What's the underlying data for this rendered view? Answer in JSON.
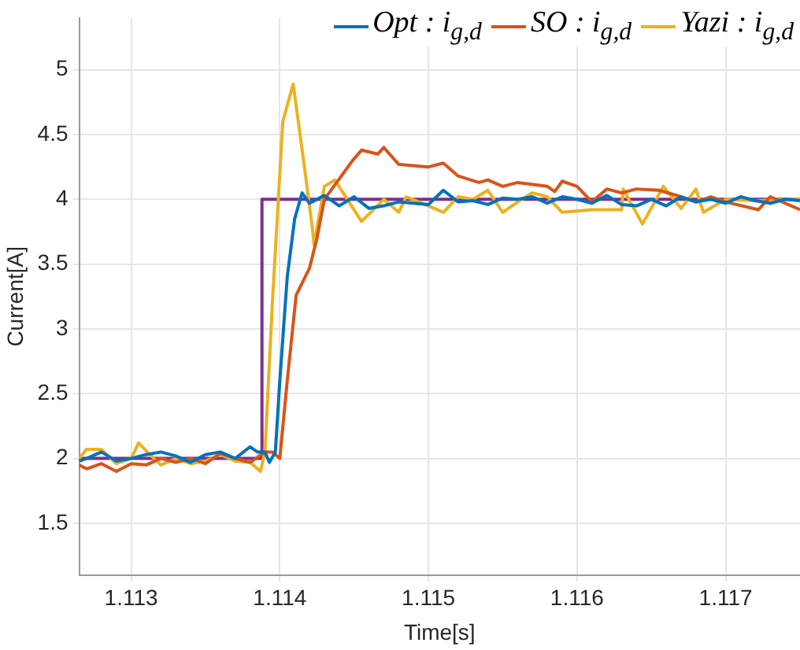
{
  "chart_data": {
    "type": "line",
    "xlabel": "Time[s]",
    "ylabel": "Current[A]",
    "xlim": [
      1.11265,
      1.1175
    ],
    "ylim": [
      1.1,
      5.4
    ],
    "xticks": [
      1.113,
      1.114,
      1.115,
      1.116,
      1.117
    ],
    "yticks": [
      1.5,
      2,
      2.5,
      3,
      3.5,
      4,
      4.5,
      5
    ],
    "grid": true,
    "legend": "top right",
    "marker": "none",
    "line_style": "solid",
    "series": [
      {
        "name": "Opt : i$_{g,d}$",
        "color": "#0072bd",
        "x": [
          1.11265,
          1.1127,
          1.1128,
          1.1129,
          1.113,
          1.1131,
          1.1132,
          1.1133,
          1.1134,
          1.1135,
          1.1136,
          1.1137,
          1.1138,
          1.11385,
          1.1139,
          1.11393,
          1.11397,
          1.114,
          1.11405,
          1.1141,
          1.11415,
          1.1142,
          1.1143,
          1.1144,
          1.1145,
          1.1146,
          1.1147,
          1.1148,
          1.1149,
          1.115,
          1.1151,
          1.1152,
          1.1153,
          1.1154,
          1.1155,
          1.1156,
          1.1157,
          1.1158,
          1.1159,
          1.116,
          1.1161,
          1.1162,
          1.1163,
          1.1164,
          1.1165,
          1.1166,
          1.1167,
          1.1168,
          1.1169,
          1.117,
          1.1171,
          1.1172,
          1.1173,
          1.1174,
          1.1175
        ],
        "values": [
          1.98,
          2.0,
          2.05,
          1.98,
          2.0,
          2.03,
          2.05,
          2.02,
          1.97,
          2.03,
          2.05,
          2.0,
          2.09,
          2.05,
          2.05,
          1.97,
          2.05,
          2.6,
          3.4,
          3.85,
          4.05,
          3.97,
          4.03,
          3.95,
          4.02,
          3.93,
          3.95,
          3.98,
          3.97,
          3.96,
          4.07,
          3.98,
          3.99,
          3.96,
          4.01,
          4.0,
          4.02,
          3.97,
          4.02,
          4.0,
          3.97,
          4.03,
          3.96,
          3.95,
          4.0,
          3.95,
          4.02,
          3.98,
          4.0,
          3.97,
          4.02,
          3.99,
          3.97,
          4.0,
          3.99
        ]
      },
      {
        "name": "SO : i$_{g,d}$",
        "color": "#d95319",
        "x": [
          1.11265,
          1.1127,
          1.1128,
          1.1129,
          1.113,
          1.1131,
          1.1132,
          1.1133,
          1.1134,
          1.1135,
          1.1136,
          1.1137,
          1.1138,
          1.1139,
          1.11395,
          1.114,
          1.11405,
          1.11411,
          1.1142,
          1.11425,
          1.1143,
          1.11449,
          1.11455,
          1.11466,
          1.1147,
          1.1148,
          1.115,
          1.1151,
          1.1152,
          1.11534,
          1.1154,
          1.1155,
          1.1156,
          1.1158,
          1.11585,
          1.1159,
          1.116,
          1.1161,
          1.1162,
          1.1163,
          1.1164,
          1.11655,
          1.1167,
          1.1168,
          1.1169,
          1.117,
          1.11722,
          1.1173,
          1.1175
        ],
        "values": [
          1.95,
          1.92,
          1.96,
          1.9,
          1.96,
          1.95,
          2.0,
          1.97,
          2.0,
          1.96,
          2.04,
          2.0,
          1.97,
          2.05,
          2.05,
          2.0,
          2.6,
          3.26,
          3.47,
          3.7,
          4.0,
          4.3,
          4.38,
          4.35,
          4.4,
          4.27,
          4.25,
          4.28,
          4.18,
          4.13,
          4.15,
          4.1,
          4.13,
          4.1,
          4.06,
          4.14,
          4.1,
          3.98,
          4.08,
          4.05,
          4.08,
          4.07,
          4.02,
          3.98,
          4.02,
          3.98,
          3.92,
          4.02,
          3.92
        ]
      },
      {
        "name": "Yazi : i$_{g,d}$",
        "color": "#edb120",
        "x": [
          1.11265,
          1.1127,
          1.1128,
          1.1129,
          1.113,
          1.11305,
          1.1131,
          1.1132,
          1.1133,
          1.1134,
          1.1135,
          1.1136,
          1.1137,
          1.1138,
          1.11387,
          1.1139,
          1.11395,
          1.11402,
          1.11409,
          1.11416,
          1.11422,
          1.11423,
          1.1143,
          1.11437,
          1.11455,
          1.1147,
          1.1148,
          1.11485,
          1.115,
          1.1151,
          1.1152,
          1.1153,
          1.1154,
          1.1155,
          1.1156,
          1.1157,
          1.1158,
          1.1159,
          1.1161,
          1.1163,
          1.11631,
          1.11644,
          1.11658,
          1.1167,
          1.1168,
          1.11685,
          1.117,
          1.1172,
          1.1175
        ],
        "values": [
          2.0,
          2.07,
          2.07,
          1.96,
          2.0,
          2.12,
          2.06,
          1.95,
          2.0,
          1.96,
          1.98,
          2.03,
          1.98,
          1.97,
          1.9,
          2.05,
          3.2,
          4.6,
          4.89,
          4.3,
          3.77,
          3.65,
          4.1,
          4.15,
          3.83,
          4.0,
          3.9,
          4.02,
          3.95,
          3.9,
          4.02,
          4.0,
          4.07,
          3.9,
          3.98,
          4.05,
          4.02,
          3.9,
          3.92,
          3.92,
          4.08,
          3.81,
          4.1,
          3.93,
          4.08,
          3.9,
          4.0,
          3.99,
          4.0
        ]
      },
      {
        "color": "#7e2f8e",
        "x": [
          1.11265,
          1.11388,
          1.11388,
          1.1175
        ],
        "values": [
          2,
          2,
          4,
          4
        ]
      }
    ]
  }
}
